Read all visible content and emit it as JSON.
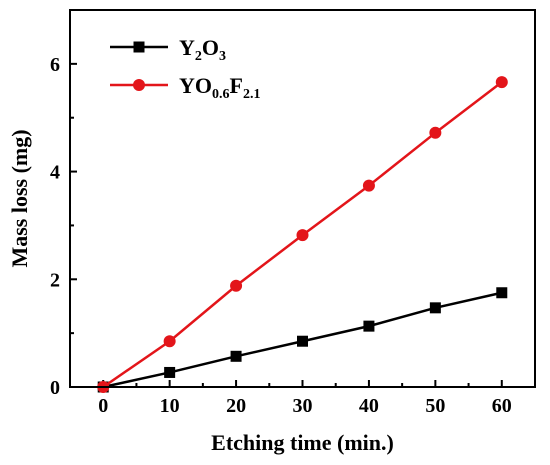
{
  "chart_data": {
    "type": "line",
    "xlabel": "Etching time (min.)",
    "ylabel": "Mass loss (mg)",
    "x": [
      0,
      10,
      20,
      30,
      40,
      50,
      60
    ],
    "xlim": [
      -5,
      65
    ],
    "ylim": [
      0,
      7
    ],
    "xticks": [
      "0",
      "10",
      "20",
      "30",
      "40",
      "50",
      "60"
    ],
    "yticks": [
      "0",
      "2",
      "4",
      "6"
    ],
    "grid": false,
    "legend_position": "top-left",
    "series": [
      {
        "name": "Y2O3",
        "label_parts": [
          {
            "t": "Y",
            "sub": false
          },
          {
            "t": "2",
            "sub": true
          },
          {
            "t": "O",
            "sub": false
          },
          {
            "t": "3",
            "sub": true
          }
        ],
        "color": "#000000",
        "marker": "square",
        "values": [
          0.0,
          0.27,
          0.57,
          0.85,
          1.13,
          1.47,
          1.75
        ]
      },
      {
        "name": "YO0.6F2.1",
        "label_parts": [
          {
            "t": "YO",
            "sub": false
          },
          {
            "t": "0.6",
            "sub": true
          },
          {
            "t": "F",
            "sub": false
          },
          {
            "t": "2.1",
            "sub": true
          }
        ],
        "color": "#e3151a",
        "marker": "circle",
        "values": [
          0.0,
          0.85,
          1.88,
          2.82,
          3.74,
          4.72,
          5.66
        ]
      }
    ]
  }
}
